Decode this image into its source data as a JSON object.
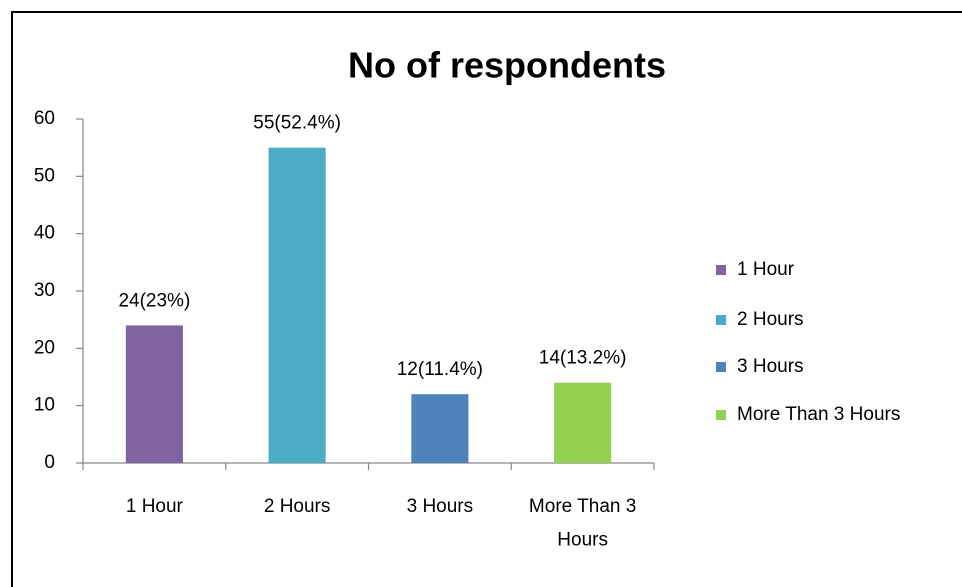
{
  "chart_data": {
    "type": "bar",
    "title": "No of respondents",
    "categories": [
      "1 Hour",
      "2 Hours",
      "3 Hours",
      "More Than 3 Hours"
    ],
    "values": [
      24,
      55,
      12,
      14
    ],
    "value_labels": [
      "24(23%)",
      "55(52.4%)",
      "12(11.4%)",
      "14(13.2%)"
    ],
    "colors": [
      "#8064a2",
      "#4bacc6",
      "#4f81bd",
      "#92d050"
    ],
    "ylim": [
      0,
      60
    ],
    "yticks": [
      0,
      10,
      20,
      30,
      40,
      50,
      60
    ],
    "grid": false,
    "legend": "right"
  }
}
